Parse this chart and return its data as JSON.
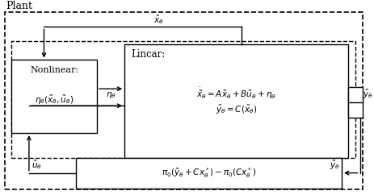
{
  "title": "Plant",
  "nonlinear_label1": "Nonlinear:",
  "nonlinear_label2": "$\\eta_{\\theta}(\\tilde{x}_{\\theta}, \\tilde{u}_{\\theta})$",
  "linear_label1": "Lincar:",
  "linear_label2": "$\\dot{\\tilde{x}}_{\\theta} = A\\tilde{x}_{\\theta} + B\\tilde{u}_{\\theta} + \\eta_{\\theta}$",
  "linear_label3": "$\\tilde{y}_{\\theta} = C(\\tilde{x}_{\\theta})$",
  "controller_label": "$\\pi_0(\\tilde{y}_{\\theta} + Cx^*_{\\theta}) - \\pi_0(Cx^*_{\\theta})$",
  "arrow_eta": "$\\eta_{\\theta}$",
  "arrow_xtilde": "$\\tilde{x}_{\\theta}$",
  "arrow_utilde": "$\\tilde{u}_{\\theta}$",
  "arrow_ytilde": "$\\tilde{y}_{\\theta}$",
  "bg_color": "#ffffff"
}
